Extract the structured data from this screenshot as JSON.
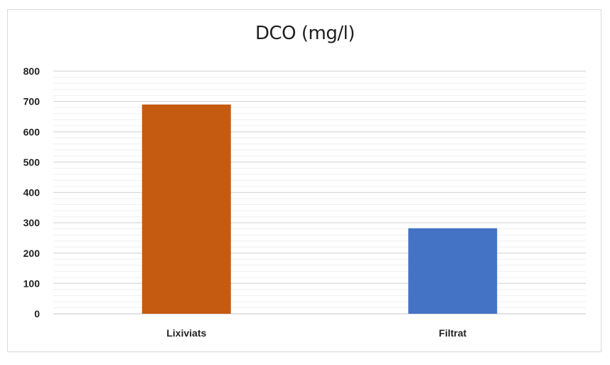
{
  "chart_data": {
    "type": "bar",
    "title": "DCO (mg/l)",
    "xlabel": "",
    "ylabel": "",
    "categories": [
      "Lixiviats",
      "Filtrat"
    ],
    "values": [
      690,
      282
    ],
    "colors": [
      "#c55a11",
      "#4472c4"
    ],
    "ylim": [
      0,
      800
    ],
    "yticks": [
      0,
      100,
      200,
      300,
      400,
      500,
      600,
      700,
      800
    ],
    "grid": true,
    "legend": "none"
  }
}
